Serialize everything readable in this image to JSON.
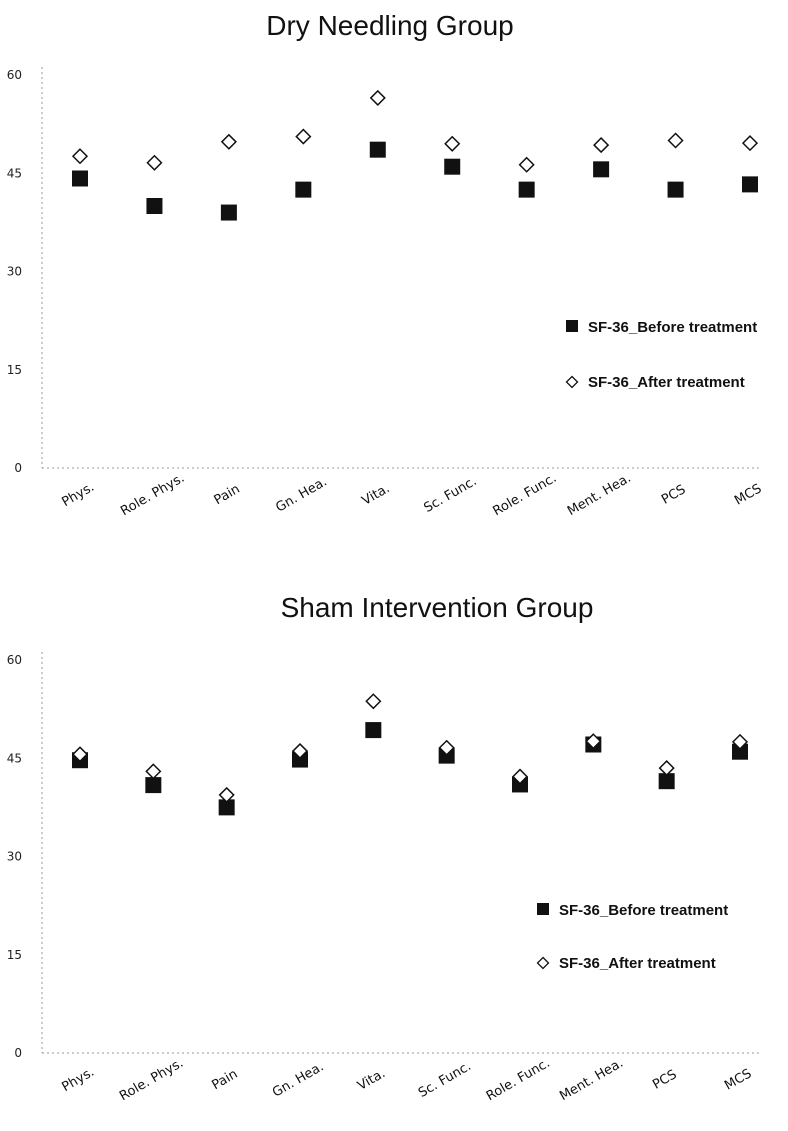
{
  "chart_data": [
    {
      "type": "scatter",
      "title": "Dry Needling Group",
      "categories": [
        "Phys.",
        "Role. Phys.",
        "Pain",
        "Gn. Hea.",
        "Vita.",
        "Sc. Func.",
        "Role. Func.",
        "Ment. Hea.",
        "PCS",
        "MCS"
      ],
      "yticks": [
        "0",
        "15",
        "30",
        "45",
        "60"
      ],
      "ylim": [
        0,
        60
      ],
      "series": [
        {
          "name": "SF-36_Before treatment",
          "marker": "filled-square",
          "color": "#111111",
          "values": [
            44.2,
            40.0,
            39.0,
            42.5,
            48.6,
            46.0,
            42.5,
            45.6,
            42.5,
            43.3
          ]
        },
        {
          "name": "SF-36_After treatment",
          "marker": "open-diamond",
          "color": "#111111",
          "values": [
            47.6,
            46.6,
            49.8,
            50.6,
            56.5,
            49.5,
            46.3,
            49.3,
            50.0,
            49.6
          ]
        }
      ],
      "legend": "right-middle",
      "grid": false
    },
    {
      "type": "scatter",
      "title": "Sham Intervention Group",
      "categories": [
        "Phys.",
        "Role. Phys.",
        "Pain",
        "Gn. Hea.",
        "Vita.",
        "Sc. Func.",
        "Role. Func.",
        "Ment. Hea.",
        "PCS",
        "MCS"
      ],
      "yticks": [
        "0",
        "15",
        "30",
        "45",
        "60"
      ],
      "ylim": [
        0,
        60
      ],
      "series": [
        {
          "name": "SF-36_Before treatment",
          "marker": "filled-square",
          "color": "#111111",
          "values": [
            44.7,
            40.9,
            37.5,
            44.8,
            49.3,
            45.4,
            41.0,
            47.1,
            41.5,
            46.0
          ]
        },
        {
          "name": "SF-36_After treatment",
          "marker": "open-diamond",
          "color": "#111111",
          "values": [
            45.6,
            43.0,
            39.4,
            46.1,
            53.7,
            46.6,
            42.2,
            47.6,
            43.5,
            47.5
          ]
        }
      ],
      "legend": "right-middle",
      "grid": false
    }
  ]
}
